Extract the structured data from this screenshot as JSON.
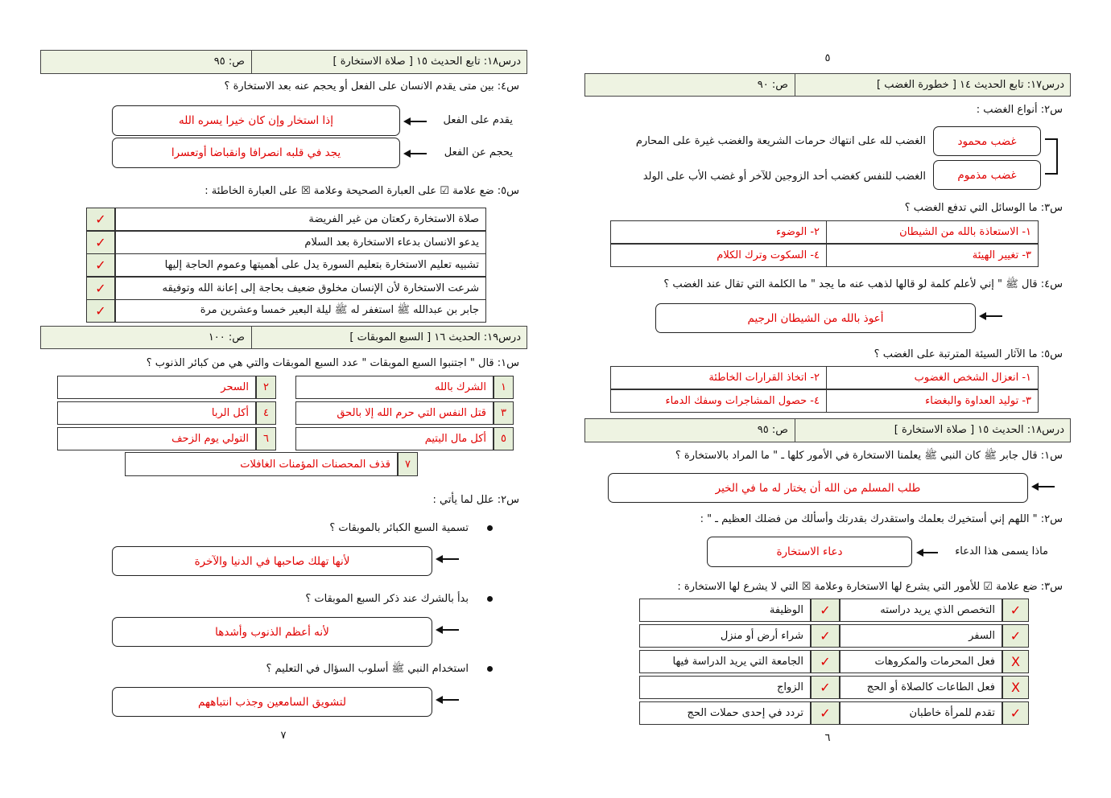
{
  "colors": {
    "header_bg": "#eef3e2",
    "answer": "#e00000",
    "check_bg": "#e6efd9"
  },
  "left_page": {
    "header1": {
      "title": "درس١٨: تابع الحديث ١٥ [ صلاة الاستخارة ]",
      "page_ref": "ص:  ٩٥"
    },
    "q4": {
      "question": "س٤: بين متى يقدم الانسان على الفعل أو يحجم  عنه بعد الاستخارة ؟",
      "items": [
        {
          "label": "يقدم على الفعل",
          "answer": "إذا استخار وإن كان خيرا يسره الله"
        },
        {
          "label": "يحجم عن الفعل",
          "answer": "يجد في قلبه انصرافا وانقباضا أوتعسرا"
        }
      ]
    },
    "q5": {
      "question": "س٥: ضع علامة ☑ على العبارة الصحيحة وعلامة ☒ على العبارة الخاطئة :",
      "rows": [
        {
          "text": "صلاة الاستخارة ركعتان من غير الفريضة",
          "mark": "✓"
        },
        {
          "text": "يدعو الانسان بدعاء الاستخارة بعد السلام",
          "mark": "✓"
        },
        {
          "text": "تشبيه تعليم الاستخارة بتعليم السورة يدل على أهميتها وعموم الحاجة إليها",
          "mark": "✓"
        },
        {
          "text": "شرعت الاستخارة لأن الإنسان مخلوق ضعيف بحاجة إلى إعانة الله وتوفيقه",
          "mark": "✓"
        },
        {
          "text": "جابر بن عبدالله ﷺ استغفر له ﷺ ليلة البعير خمسا وعشرين مرة",
          "mark": "✓"
        }
      ]
    },
    "header2": {
      "title": "درس١٩: الحديث ١٦ [ السبع الموبقات ]",
      "page_ref": "ص:  ١٠٠"
    },
    "q1": {
      "question": "س١: قال \" اجتنبوا السبع الموبقات \" عدد السبع الموبقات والتي هي من كبائر الذنوب ؟",
      "items": [
        {
          "num": "١",
          "text": "الشرك بالله"
        },
        {
          "num": "٢",
          "text": "السحر"
        },
        {
          "num": "٣",
          "text": "قتل النفس التي حرم الله إلا بالحق"
        },
        {
          "num": "٤",
          "text": "أكل الربا"
        },
        {
          "num": "٥",
          "text": "أكل مال اليتيم"
        },
        {
          "num": "٦",
          "text": "التولي يوم الزحف"
        },
        {
          "num": "٧",
          "text": "قذف المحصنات المؤمنات الغافلات"
        }
      ]
    },
    "q2": {
      "question": "س٢: علل لما يأتي :",
      "items": [
        {
          "bullet": "تسمية السبع الكبائر بالموبقات ؟",
          "answer": "لأنها تهلك صاحبها في الدنيا والآخرة"
        },
        {
          "bullet": "بدأ بالشرك عند ذكر السبع الموبقات ؟",
          "answer": "لأنه أعظم الذنوب وأشدها"
        },
        {
          "bullet": "استخدام النبي ﷺ أسلوب السؤال في التعليم ؟",
          "answer": "لتشويق السامعين وجذب انتباههم"
        }
      ]
    },
    "page_number": "٧"
  },
  "right_page": {
    "top_number": "٥",
    "header1": {
      "title": "درس١٧: تابع الحديث ١٤ [ خطورة الغضب ]",
      "page_ref": "ص:  ٩٠"
    },
    "q2": {
      "question": "س٢: أنواع الغضب :",
      "items": [
        {
          "type": "غضب محمود",
          "desc": "الغضب لله على انتهاك حرمات الشريعة والغضب غيرة على المحارم"
        },
        {
          "type": "غضب مذموم",
          "desc": "الغضب للنفس كغضب أحد الزوجين للآخر أو غضب الأب على الولد"
        }
      ]
    },
    "q3": {
      "question": "س٣: ما الوسائل التي تدفع الغضب ؟",
      "cells": [
        "١- الاستعاذة بالله من الشيطان",
        "٢- الوضوء",
        "٣- تغيير الهيئة",
        "٤- السكوت وترك الكلام"
      ]
    },
    "q4": {
      "question": "س٤: قال ﷺ \" إني لأعلم كلمة لو قالها لذهب عنه ما يجد \" ما الكلمة التي تقال عند الغضب ؟",
      "answer": "أعوذ بالله من الشيطان الرجيم"
    },
    "q5": {
      "question": "س٥: ما الآثار السيئة المترتبة على الغضب ؟",
      "cells": [
        "١- انعزال الشخص الغضوب",
        "٢- اتخاذ القرارات الخاطئة",
        "٣- توليد العداوة والبغضاء",
        "٤- حصول المشاجرات وسفك الدماء"
      ]
    },
    "header2": {
      "title": "درس١٨: الحديث ١٥  [ صلاة الاستخارة ]",
      "page_ref": "ص:  ٩٥"
    },
    "q1": {
      "question": "س١: قال جابر ﷺ كان النبي ﷺ يعلمنا الاستخارة في الأمور كلها ـ \" ما المراد بالاستخارة ؟",
      "answer": "طلب المسلم من الله أن يختار له ما في الخير"
    },
    "q2b": {
      "question": "س٢: \" اللهم إني أستخيرك بعلمك واستقدرك بقدرتك وأسألك من فضلك العظيم ـ \" :",
      "label": "ماذا يسمى هذا الدعاء",
      "answer": "دعاء الاستخارة"
    },
    "q3b": {
      "question": "س٣: ضع علامة ☑ للأمور التي يشرع لها الاستخارة وعلامة ☒ التي لا يشرع لها الاستخارة :",
      "rows": [
        [
          {
            "mark": "✓",
            "text": "التخصص الذي يريد دراسته"
          },
          {
            "mark": "✓",
            "text": "الوظيفة"
          }
        ],
        [
          {
            "mark": "✓",
            "text": "السفر"
          },
          {
            "mark": "✓",
            "text": "شراء أرض أو منزل"
          }
        ],
        [
          {
            "mark": "X",
            "text": "فعل المحرمات والمكروهات"
          },
          {
            "mark": "✓",
            "text": "الجامعة التي يريد الدراسة فيها"
          }
        ],
        [
          {
            "mark": "X",
            "text": "فعل الطاعات كالصلاة أو الحج"
          },
          {
            "mark": "✓",
            "text": "الزواج"
          }
        ],
        [
          {
            "mark": "✓",
            "text": "تقدم للمرأة خاطبان"
          },
          {
            "mark": "✓",
            "text": "تردد في إحدى حملات الحج"
          }
        ]
      ]
    },
    "page_number": "٦"
  }
}
